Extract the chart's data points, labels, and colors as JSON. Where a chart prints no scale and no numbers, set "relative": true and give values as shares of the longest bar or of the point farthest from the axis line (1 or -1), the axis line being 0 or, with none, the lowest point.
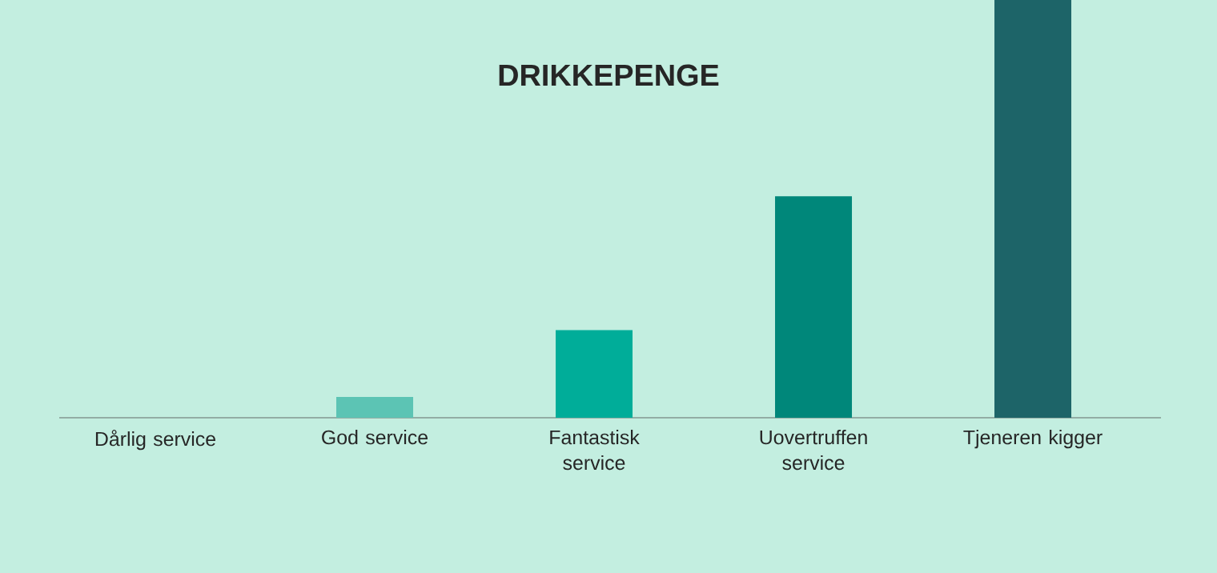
{
  "chart_data": {
    "type": "bar",
    "title": "DRIKKEPENGE",
    "relative": true,
    "categories": [
      "Dårlig service",
      "God service",
      "Fantastisk service",
      "Uovertruffen service",
      "Tjeneren kigger"
    ],
    "values": [
      0,
      0.05,
      0.21,
      0.53,
      1
    ],
    "colors": [
      "#5cc4b4",
      "#5cc4b4",
      "#00ad99",
      "#00877a",
      "#1d6468"
    ]
  }
}
